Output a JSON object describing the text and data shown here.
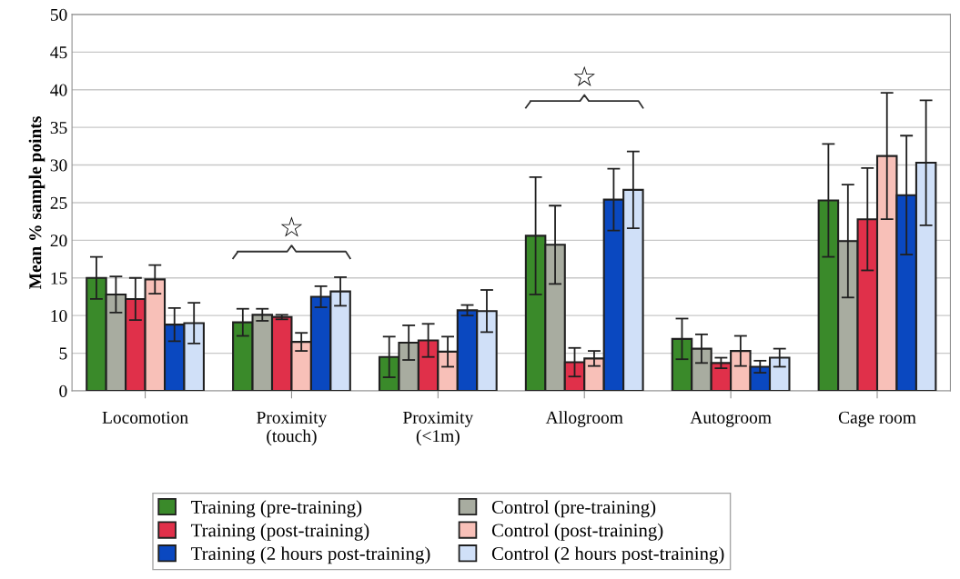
{
  "chart_data": {
    "type": "bar",
    "ylabel": "Mean % sample points",
    "categories": [
      "Locomotion",
      "Proximity\n(touch)",
      "Proximity\n(<1m)",
      "Allogroom",
      "Autogroom",
      "Cage room"
    ],
    "series": [
      {
        "name": "Training (pre-training)",
        "color": "#3a8a2a",
        "values": [
          15.0,
          9.1,
          4.5,
          20.6,
          6.9,
          25.3
        ],
        "errors": [
          2.8,
          1.8,
          2.7,
          7.8,
          2.7,
          7.5
        ]
      },
      {
        "name": "Control (pre-training)",
        "color": "#a8aca0",
        "values": [
          12.8,
          10.1,
          6.4,
          19.4,
          5.6,
          19.9
        ],
        "errors": [
          2.4,
          0.8,
          2.3,
          5.2,
          1.9,
          7.5
        ]
      },
      {
        "name": "Training (post-training)",
        "color": "#e0304a",
        "values": [
          12.2,
          9.8,
          6.7,
          3.8,
          3.7,
          22.8
        ],
        "errors": [
          2.8,
          0.3,
          2.2,
          1.9,
          0.7,
          6.8
        ]
      },
      {
        "name": "Control (post-training)",
        "color": "#f8c0b8",
        "values": [
          14.8,
          6.5,
          5.2,
          4.3,
          5.3,
          31.2
        ],
        "errors": [
          1.9,
          1.2,
          2.0,
          1.0,
          2.0,
          8.4
        ]
      },
      {
        "name": "Training (2 hours post-training)",
        "color": "#0a48c0",
        "values": [
          8.8,
          12.5,
          10.7,
          25.4,
          3.2,
          26.0
        ],
        "errors": [
          2.2,
          1.4,
          0.7,
          4.1,
          0.8,
          7.9
        ]
      },
      {
        "name": "Control (2 hours post-training)",
        "color": "#d0e0f8",
        "values": [
          9.0,
          13.2,
          10.6,
          26.7,
          4.4,
          30.3
        ],
        "errors": [
          2.7,
          1.9,
          2.8,
          5.1,
          1.2,
          8.3
        ]
      }
    ],
    "ylim": [
      0,
      50
    ],
    "yticks": [
      0,
      5,
      10,
      15,
      20,
      25,
      30,
      35,
      40,
      45,
      50
    ],
    "grid": "y",
    "legend": "bottom",
    "annotations": [
      "☆",
      "☆"
    ]
  }
}
